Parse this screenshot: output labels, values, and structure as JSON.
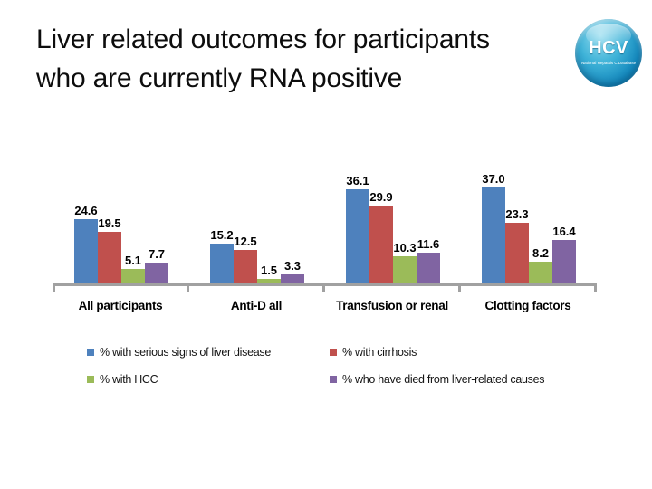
{
  "slide": {
    "title_line1": "Liver related outcomes for participants",
    "title_line2": "who are currently RNA positive"
  },
  "logo": {
    "text": "HCV",
    "caption": "National Hepatitis C Database"
  },
  "chart_data": {
    "type": "bar",
    "title": "",
    "xlabel": "",
    "ylabel": "",
    "categories": [
      "All participants",
      "Anti-D all",
      "Transfusion or renal",
      "Clotting factors"
    ],
    "series": [
      {
        "name": "% with serious signs of liver disease",
        "color": "#4E81BD",
        "values": [
          24.6,
          15.2,
          36.1,
          37.0
        ]
      },
      {
        "name": "% with cirrhosis",
        "color": "#C0504D",
        "values": [
          19.5,
          12.5,
          29.9,
          23.3
        ]
      },
      {
        "name": "% with HCC",
        "color": "#9BBB59",
        "values": [
          5.1,
          1.5,
          10.3,
          8.2
        ]
      },
      {
        "name": "% who have died from liver-related causes",
        "color": "#8064A2",
        "values": [
          7.7,
          3.3,
          11.6,
          16.4
        ]
      }
    ],
    "value_labels": true,
    "value_label_decimals": 1,
    "ylim": [
      0,
      40
    ],
    "gridlines": false,
    "axis_color": "#A1A1A1",
    "legend_position": "bottom, 2 columns x 2 rows"
  }
}
